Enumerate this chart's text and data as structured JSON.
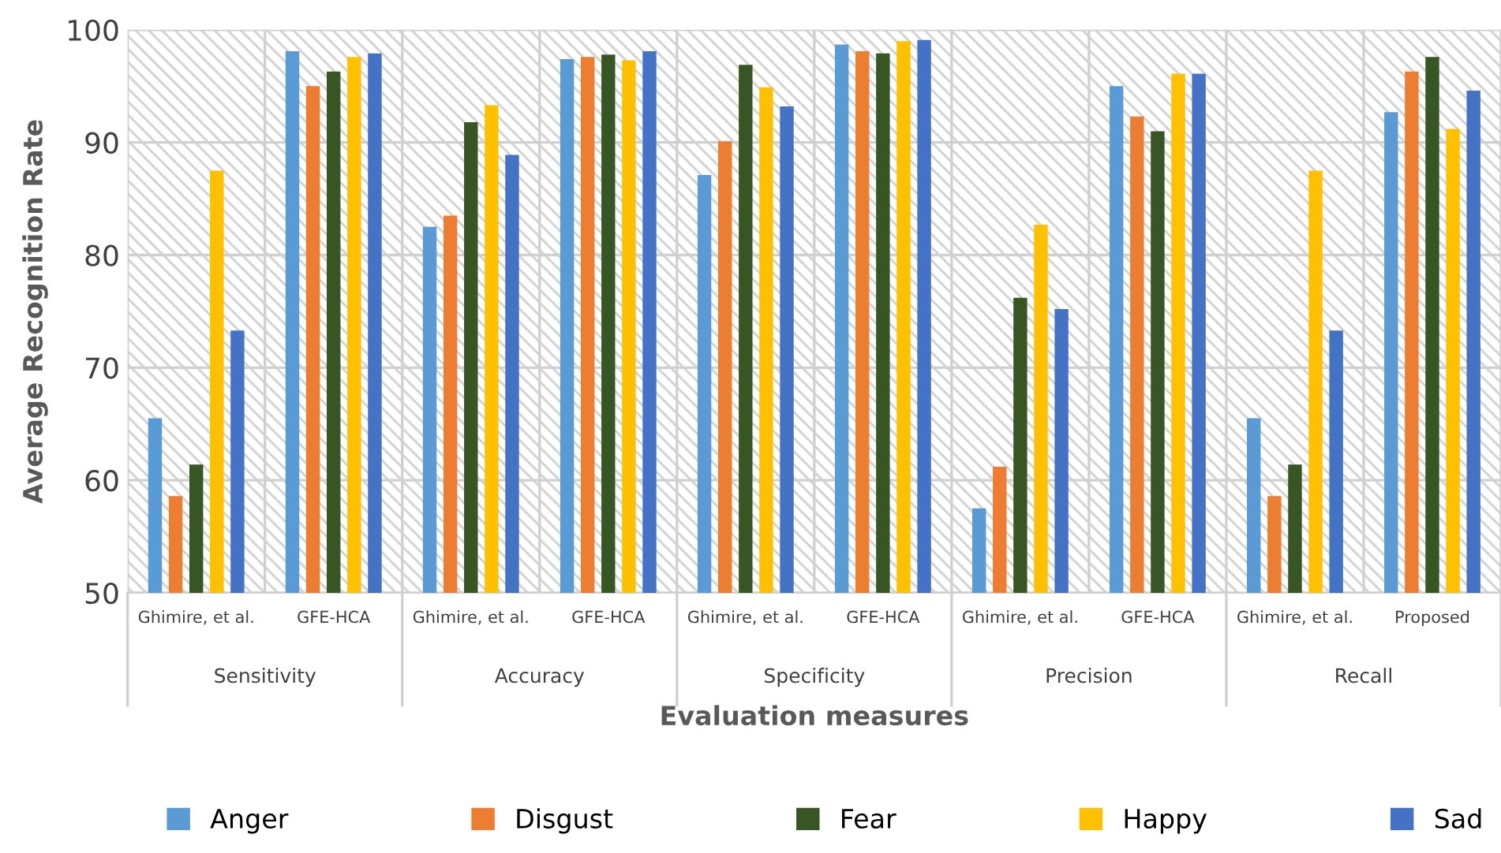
{
  "chart_data": {
    "type": "bar",
    "xlabel": "Evaluation measures",
    "ylabel": "Average Recognition Rate",
    "categories": [
      "Ghimire, et al.",
      "GFE-HCA",
      "Ghimire, et al.",
      "GFE-HCA",
      "Ghimire, et al.",
      "GFE-HCA",
      "Ghimire, et al.",
      "GFE-HCA",
      "Ghimire, et al.",
      "Proposed"
    ],
    "annotations": [
      "Sensitivity",
      "Accuracy",
      "Specificity",
      "Precision",
      "Recall"
    ],
    "series": [
      {
        "name": "Anger",
        "color": "#5b9bd5",
        "values": [
          65.5,
          98.1,
          82.5,
          97.4,
          87.1,
          98.7,
          57.5,
          95.0,
          65.5,
          92.7
        ]
      },
      {
        "name": "Disgust",
        "color": "#ed7d31",
        "values": [
          58.6,
          95.0,
          83.5,
          97.6,
          90.1,
          98.1,
          61.2,
          92.3,
          58.6,
          96.3
        ]
      },
      {
        "name": "Fear",
        "color": "#375623",
        "values": [
          61.4,
          96.3,
          91.8,
          97.8,
          96.9,
          97.9,
          76.2,
          91.0,
          61.4,
          97.6
        ]
      },
      {
        "name": "Happy",
        "color": "#ffc000",
        "values": [
          87.5,
          97.6,
          93.3,
          97.3,
          94.9,
          99.0,
          82.7,
          96.1,
          87.5,
          91.2
        ]
      },
      {
        "name": "Sad",
        "color": "#4472c4",
        "values": [
          73.3,
          97.9,
          88.9,
          98.1,
          93.2,
          99.1,
          75.2,
          96.1,
          73.3,
          94.6
        ]
      }
    ],
    "ylim": [
      50,
      100
    ],
    "yticks": [
      50,
      60,
      70,
      80,
      90,
      100
    ],
    "grid": true,
    "legend": "bottom"
  }
}
